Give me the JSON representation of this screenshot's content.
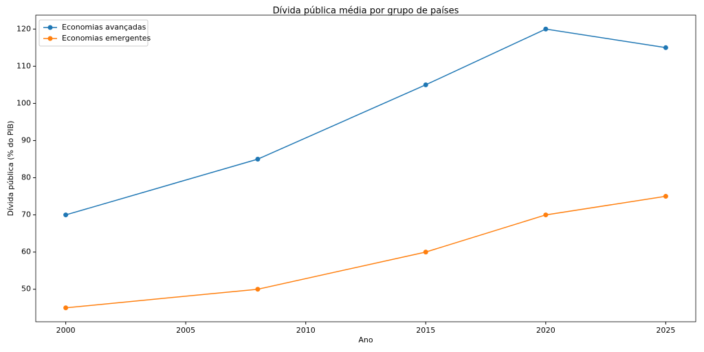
{
  "chart_data": {
    "type": "line",
    "title": "Dívida pública média por grupo de países",
    "x_label": "Ano",
    "y_label": "Dívida pública (% do PIB)",
    "x": [
      2000,
      2008,
      2015,
      2020,
      2025
    ],
    "series": [
      {
        "name": "Economias avançadas",
        "color": "#1f77b4",
        "values": [
          70,
          85,
          105,
          120,
          115
        ]
      },
      {
        "name": "Economias emergentes",
        "color": "#ff7f0e",
        "values": [
          45,
          50,
          60,
          70,
          75
        ]
      }
    ],
    "xlim": [
      1998.75,
      2026.25
    ],
    "xticks": [
      2000,
      2005,
      2010,
      2015,
      2020,
      2025
    ],
    "ylim": [
      41.25,
      123.75
    ],
    "yticks": [
      50,
      60,
      70,
      80,
      90,
      100,
      110,
      120
    ],
    "grid": false,
    "legend": "upper left"
  }
}
